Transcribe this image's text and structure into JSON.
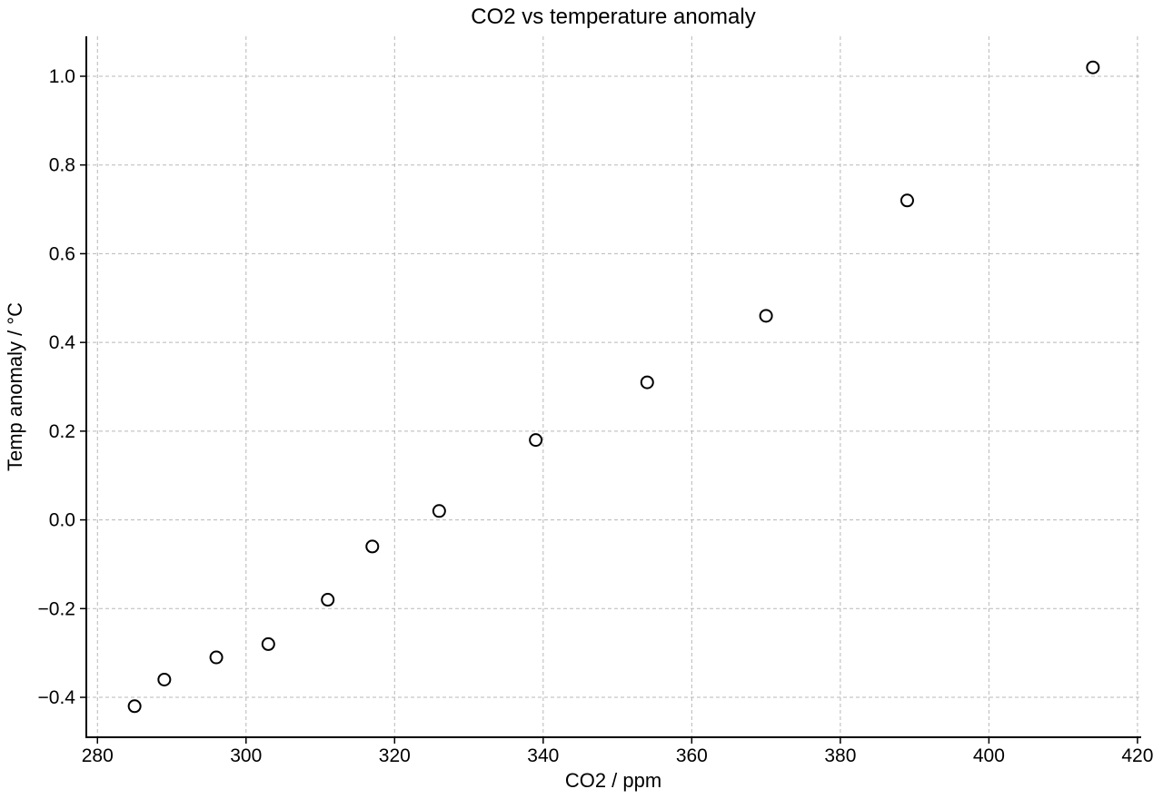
{
  "chart_data": {
    "type": "scatter",
    "title": "CO2 vs temperature anomaly",
    "xlabel": "CO2 / ppm",
    "ylabel": "Temp anomaly / °C",
    "xlim": [
      278.5,
      420.5
    ],
    "ylim": [
      -0.49,
      1.09
    ],
    "xticks": [
      280,
      300,
      320,
      340,
      360,
      380,
      400,
      420
    ],
    "xtick_labels": [
      "280",
      "300",
      "320",
      "340",
      "360",
      "380",
      "400",
      "420"
    ],
    "yticks": [
      -0.4,
      -0.2,
      0.0,
      0.2,
      0.4,
      0.6,
      0.8,
      1.0
    ],
    "ytick_labels": [
      "−0.4",
      "−0.2",
      "0.0",
      "0.2",
      "0.4",
      "0.6",
      "0.8",
      "1.0"
    ],
    "grid": true,
    "marker": "open-circle",
    "colors": {
      "marker": "#000000",
      "grid": "#b8b8b8",
      "axis": "#000000"
    },
    "points": [
      {
        "x": 285,
        "y": -0.42
      },
      {
        "x": 289,
        "y": -0.36
      },
      {
        "x": 296,
        "y": -0.31
      },
      {
        "x": 303,
        "y": -0.28
      },
      {
        "x": 311,
        "y": -0.18
      },
      {
        "x": 317,
        "y": -0.06
      },
      {
        "x": 326,
        "y": 0.02
      },
      {
        "x": 339,
        "y": 0.18
      },
      {
        "x": 354,
        "y": 0.31
      },
      {
        "x": 370,
        "y": 0.46
      },
      {
        "x": 389,
        "y": 0.72
      },
      {
        "x": 414,
        "y": 1.02
      }
    ]
  }
}
